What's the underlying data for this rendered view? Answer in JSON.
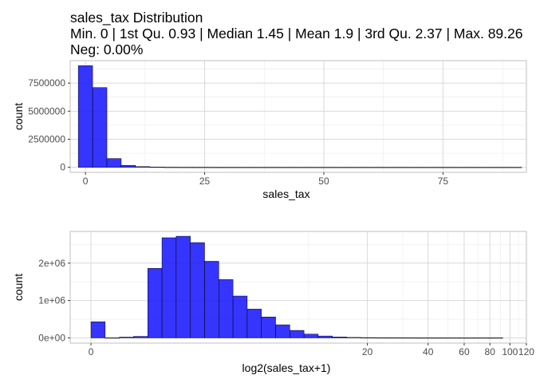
{
  "title": {
    "line1": "sales_tax Distribution",
    "line2": "Min. 0 | 1st Qu. 0.93 | Median 1.45 | Mean 1.9 | 3rd Qu. 2.37 | Max. 89.26",
    "line3": "Neg: 0.00%"
  },
  "colors": {
    "bar_fill": "#1f1fff",
    "bar_stroke": "#000000",
    "grid_major": "#d9d9d9",
    "grid_minor": "#ebebeb",
    "panel_border": "#bfbfbf"
  },
  "chart_data": [
    {
      "type": "bar",
      "chart_kind": "histogram",
      "xlabel": "sales_tax",
      "ylabel": "count",
      "xlim": [
        -3.2,
        92.5
      ],
      "ylim": [
        -450000,
        9500000
      ],
      "x_ticks": [
        0,
        25,
        50,
        75
      ],
      "x_tick_labels": [
        "0",
        "25",
        "50",
        "75"
      ],
      "y_ticks": [
        0,
        2500000,
        5000000,
        7500000
      ],
      "y_tick_labels": [
        "0",
        "2500000",
        "5000000",
        "7500000"
      ],
      "grid": true,
      "bins": [
        {
          "x0": -1.5,
          "x1": 1.5,
          "count": 9050000
        },
        {
          "x0": 1.5,
          "x1": 4.5,
          "count": 7100000
        },
        {
          "x0": 4.5,
          "x1": 7.5,
          "count": 780000
        },
        {
          "x0": 7.5,
          "x1": 10.5,
          "count": 170000
        },
        {
          "x0": 10.5,
          "x1": 13.5,
          "count": 60000
        },
        {
          "x0": 13.5,
          "x1": 16.5,
          "count": 20000
        },
        {
          "x0": 16.5,
          "x1": 19.5,
          "count": 8000
        },
        {
          "x0": 19.5,
          "x1": 22.5,
          "count": 4000
        },
        {
          "x0": 22.5,
          "x1": 25.5,
          "count": 2000
        },
        {
          "x0": 25.5,
          "x1": 28.5,
          "count": 1000
        },
        {
          "x0": 28.5,
          "x1": 31.5,
          "count": 500
        },
        {
          "x0": 31.5,
          "x1": 34.5,
          "count": 300
        },
        {
          "x0": 34.5,
          "x1": 37.5,
          "count": 200
        },
        {
          "x0": 37.5,
          "x1": 40.5,
          "count": 100
        },
        {
          "x0": 40.5,
          "x1": 43.5,
          "count": 100
        },
        {
          "x0": 43.5,
          "x1": 46.5,
          "count": 50
        },
        {
          "x0": 46.5,
          "x1": 49.5,
          "count": 50
        },
        {
          "x0": 49.5,
          "x1": 52.5,
          "count": 30
        },
        {
          "x0": 52.5,
          "x1": 55.5,
          "count": 20
        },
        {
          "x0": 55.5,
          "x1": 58.5,
          "count": 20
        },
        {
          "x0": 58.5,
          "x1": 61.5,
          "count": 10
        },
        {
          "x0": 61.5,
          "x1": 64.5,
          "count": 10
        },
        {
          "x0": 64.5,
          "x1": 67.5,
          "count": 10
        },
        {
          "x0": 67.5,
          "x1": 70.5,
          "count": 5
        },
        {
          "x0": 70.5,
          "x1": 73.5,
          "count": 5
        },
        {
          "x0": 73.5,
          "x1": 76.5,
          "count": 5
        },
        {
          "x0": 76.5,
          "x1": 79.5,
          "count": 3
        },
        {
          "x0": 79.5,
          "x1": 82.5,
          "count": 3
        },
        {
          "x0": 82.5,
          "x1": 85.5,
          "count": 2
        },
        {
          "x0": 85.5,
          "x1": 88.5,
          "count": 2
        },
        {
          "x0": 88.5,
          "x1": 91.5,
          "count": 1
        }
      ]
    },
    {
      "type": "bar",
      "chart_kind": "histogram",
      "scale": "log2(x+1)",
      "xlabel": "log2(sales_tax+1)",
      "ylabel": "count",
      "xlim": [
        -0.33,
        6.92
      ],
      "ylim": [
        -140000,
        2850000
      ],
      "x_ticks": [
        0,
        20,
        40,
        60,
        80,
        100,
        120
      ],
      "x_tick_labels": [
        "0",
        "20",
        "40",
        "60",
        "80",
        "100",
        "120"
      ],
      "x_minor_ticks": [
        10,
        30,
        50,
        70,
        90,
        110
      ],
      "y_ticks": [
        0,
        1000000,
        2000000
      ],
      "y_tick_labels": [
        "0e+00",
        "1e+06",
        "2e+06"
      ],
      "grid": true,
      "bin_width_log2": 0.2257,
      "bins": [
        {
          "x0": 0.0,
          "x1": 0.2257,
          "count": 430000
        },
        {
          "x0": 0.2257,
          "x1": 0.4514,
          "count": 0
        },
        {
          "x0": 0.4514,
          "x1": 0.6771,
          "count": 20000
        },
        {
          "x0": 0.6771,
          "x1": 0.9028,
          "count": 40000
        },
        {
          "x0": 0.9028,
          "x1": 1.1285,
          "count": 1860000
        },
        {
          "x0": 1.1285,
          "x1": 1.3542,
          "count": 2680000
        },
        {
          "x0": 1.3542,
          "x1": 1.5799,
          "count": 2720000
        },
        {
          "x0": 1.5799,
          "x1": 1.8056,
          "count": 2550000
        },
        {
          "x0": 1.8056,
          "x1": 2.0313,
          "count": 2050000
        },
        {
          "x0": 2.0313,
          "x1": 2.257,
          "count": 1560000
        },
        {
          "x0": 2.257,
          "x1": 2.4827,
          "count": 1120000
        },
        {
          "x0": 2.4827,
          "x1": 2.7084,
          "count": 770000
        },
        {
          "x0": 2.7084,
          "x1": 2.9341,
          "count": 560000
        },
        {
          "x0": 2.9341,
          "x1": 3.1598,
          "count": 350000
        },
        {
          "x0": 3.1598,
          "x1": 3.3855,
          "count": 200000
        },
        {
          "x0": 3.3855,
          "x1": 3.6112,
          "count": 100000
        },
        {
          "x0": 3.6112,
          "x1": 3.8369,
          "count": 50000
        },
        {
          "x0": 3.8369,
          "x1": 4.0626,
          "count": 25000
        },
        {
          "x0": 4.0626,
          "x1": 4.2883,
          "count": 12000
        },
        {
          "x0": 4.2883,
          "x1": 4.514,
          "count": 6000
        },
        {
          "x0": 4.514,
          "x1": 4.7397,
          "count": 3000
        },
        {
          "x0": 4.7397,
          "x1": 4.9654,
          "count": 2000
        },
        {
          "x0": 4.9654,
          "x1": 5.1911,
          "count": 1000
        },
        {
          "x0": 5.1911,
          "x1": 5.4168,
          "count": 600
        },
        {
          "x0": 5.4168,
          "x1": 5.6425,
          "count": 300
        },
        {
          "x0": 5.6425,
          "x1": 5.8682,
          "count": 200
        },
        {
          "x0": 5.8682,
          "x1": 6.0939,
          "count": 100
        },
        {
          "x0": 6.0939,
          "x1": 6.3196,
          "count": 60
        },
        {
          "x0": 6.3196,
          "x1": 6.5453,
          "count": 20
        }
      ]
    }
  ]
}
